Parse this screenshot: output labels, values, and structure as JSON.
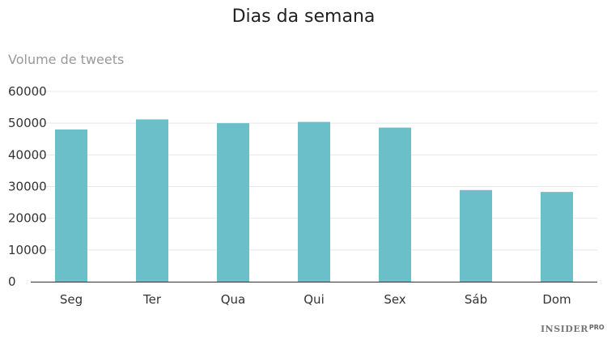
{
  "chart_data": {
    "type": "bar",
    "title": "Dias da semana",
    "xlabel": "",
    "ylabel": "Volume de tweets",
    "categories": [
      "Seg",
      "Ter",
      "Qua",
      "Qui",
      "Sex",
      "Sáb",
      "Dom"
    ],
    "values": [
      48000,
      51200,
      50000,
      50400,
      48600,
      28900,
      28300
    ],
    "ylim": [
      0,
      60000
    ],
    "yticks": [
      "0",
      "10000",
      "20000",
      "30000",
      "40000",
      "50000",
      "60000"
    ],
    "grid": true,
    "bar_color": "#6abfc8"
  },
  "branding": {
    "logo": "INSIDER",
    "logo_sup": "PRO"
  }
}
